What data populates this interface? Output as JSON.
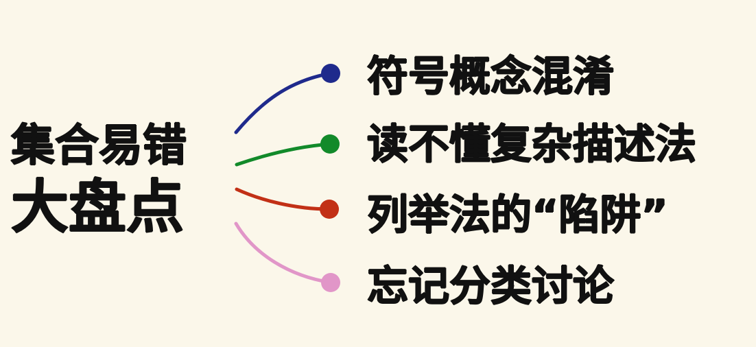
{
  "title": {
    "line1": "集合易错",
    "line2": "大盘点"
  },
  "items": [
    {
      "label": "符号概念混淆",
      "color": "#1f2a8c"
    },
    {
      "label": "读不懂复杂描述法",
      "color": "#128a2a"
    },
    {
      "label": "列举法的“陷阱”",
      "color": "#c23016"
    },
    {
      "label": "忘记分类讨论",
      "color": "#e196c8"
    }
  ]
}
